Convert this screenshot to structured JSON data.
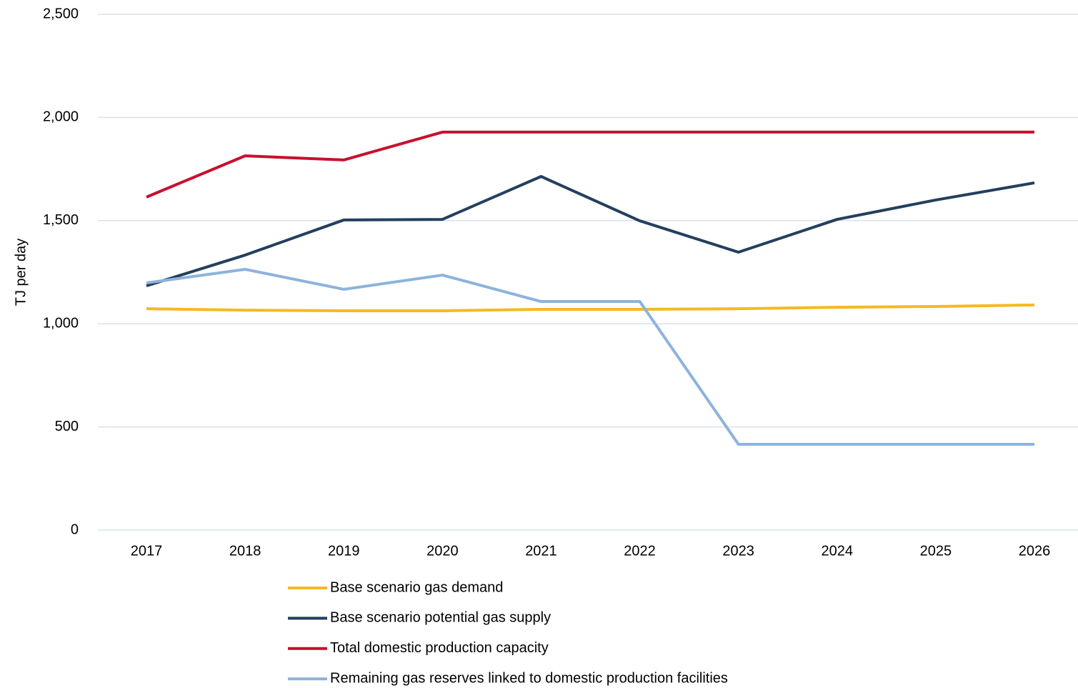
{
  "chart_data": {
    "type": "line",
    "y_label": "TJ per day",
    "categories": [
      "2017",
      "2018",
      "2019",
      "2020",
      "2021",
      "2022",
      "2023",
      "2024",
      "2025",
      "2026"
    ],
    "series": [
      {
        "name": "Base scenario gas demand",
        "color": "#f5b921",
        "values": [
          1073,
          1066,
          1063,
          1063,
          1070,
          1070,
          1073,
          1080,
          1084,
          1091
        ]
      },
      {
        "name": "Base scenario potential gas supply",
        "color": "#243f5e",
        "values": [
          1184,
          1333,
          1503,
          1506,
          1714,
          1499,
          1347,
          1506,
          1600,
          1683
        ]
      },
      {
        "name": "Total domestic production capacity",
        "color": "#c8102e",
        "values": [
          1614,
          1814,
          1794,
          1929,
          1929,
          1929,
          1929,
          1929,
          1929,
          1929
        ]
      },
      {
        "name": "Remaining gas reserves linked to domestic production facilities",
        "color": "#8db3dc",
        "values": [
          1198,
          1264,
          1167,
          1236,
          1108,
          1108,
          416,
          416,
          416,
          416
        ]
      }
    ],
    "ylim": [
      0,
      2500
    ],
    "yticks": [
      0,
      500,
      {
        "value": 1000,
        "label": "1,000"
      },
      {
        "value": 1500,
        "label": "1,500"
      },
      {
        "value": 2000,
        "label": "2,000"
      },
      {
        "value": 2500,
        "label": "2,500"
      }
    ],
    "grid": true
  }
}
